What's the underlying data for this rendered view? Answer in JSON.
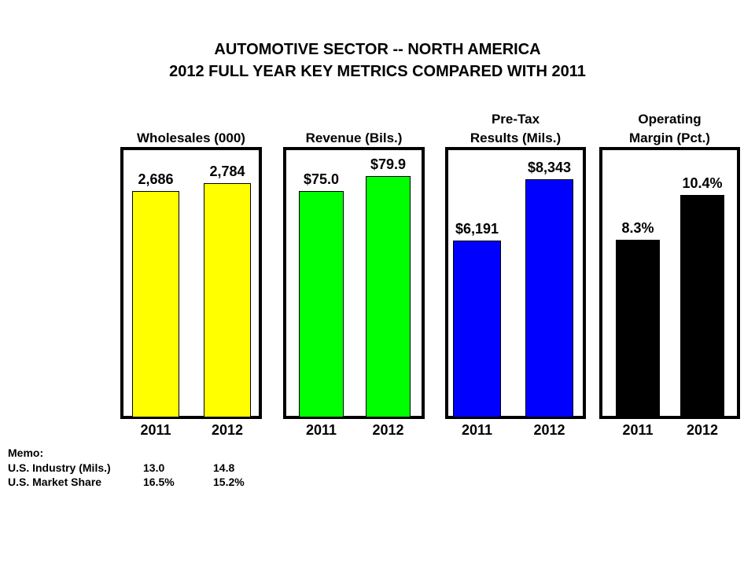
{
  "chart_data": {
    "type": "bar",
    "title": "AUTOMOTIVE SECTOR -- NORTH AMERICA",
    "subtitle": "2012 FULL YEAR KEY METRICS COMPARED WITH 2011",
    "categories": [
      "2011",
      "2012"
    ],
    "panels": [
      {
        "title": [
          "",
          "Wholesales (000)"
        ],
        "values": [
          2686,
          2784
        ],
        "labels": [
          "2,686",
          "2,784"
        ],
        "color": "#ffff00",
        "ylim": [
          0,
          3172
        ]
      },
      {
        "title": [
          "",
          "Revenue (Bils.)"
        ],
        "values": [
          75.0,
          79.9
        ],
        "labels": [
          "$75.0",
          "$79.9"
        ],
        "color": "#00ff00",
        "ylim": [
          0,
          88.5
        ]
      },
      {
        "title": [
          "Pre-Tax",
          "Results (Mils.)"
        ],
        "values": [
          6191,
          8343
        ],
        "labels": [
          "$6,191",
          "$8,343"
        ],
        "color": "#0000ff",
        "ylim": [
          0,
          9356
        ]
      },
      {
        "title": [
          "Operating",
          "Margin (Pct.)"
        ],
        "values": [
          8.3,
          10.4
        ],
        "labels": [
          "8.3%",
          "10.4%"
        ],
        "color": "#000000",
        "ylim": [
          0,
          12.5
        ]
      }
    ]
  },
  "memo": {
    "heading": "Memo:",
    "rows": [
      {
        "label": "U.S. Industry (Mils.)",
        "v2011": "13.0",
        "v2012": "14.8"
      },
      {
        "label": "U.S. Market Share",
        "v2011": "16.5%",
        "v2012": "15.2%"
      }
    ]
  }
}
